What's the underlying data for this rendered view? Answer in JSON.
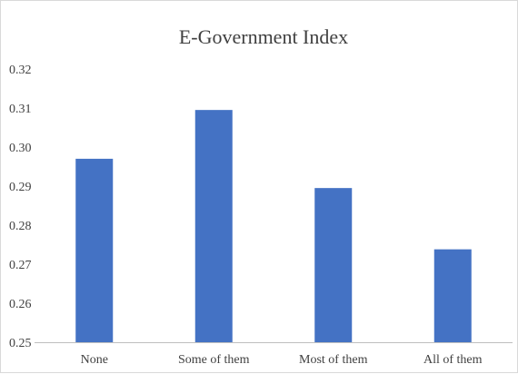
{
  "chart_data": {
    "type": "bar",
    "title": "E-Government Index",
    "xlabel": "",
    "ylabel": "",
    "categories": [
      "None",
      "Some of them",
      "Most of them",
      "All of them"
    ],
    "values": [
      0.297,
      0.3095,
      0.2895,
      0.2738
    ],
    "ylim": [
      0.25,
      0.32
    ],
    "yticks": [
      "0.25",
      "0.26",
      "0.27",
      "0.28",
      "0.29",
      "0.30",
      "0.31",
      "0.32"
    ],
    "grid": false,
    "legend": "none",
    "bar_color": "#4472c4",
    "axis_color": "#bfbfbf",
    "text_color": "#404040"
  }
}
